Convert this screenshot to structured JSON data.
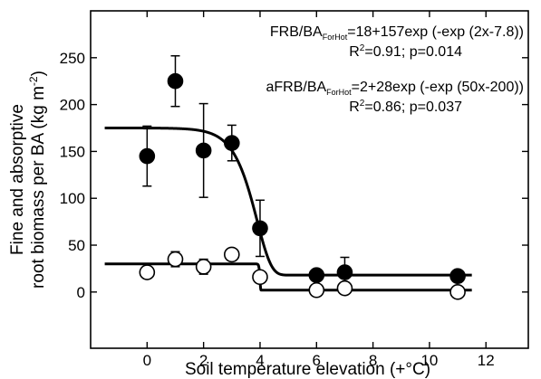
{
  "chart_data": {
    "type": "scatter",
    "xlabel": "Soil temperature elevation (+°C)",
    "ylabel_line1": "Fine and absorptive",
    "ylabel_line2": "root biomass per BA (kg m",
    "ylabel_sup": "-2",
    "ylabel_end": ")",
    "xlim": [
      -2,
      13.5
    ],
    "ylim": [
      -60,
      300
    ],
    "x_ticks": [
      "0",
      "2",
      "4",
      "6",
      "8",
      "10",
      "12"
    ],
    "y_ticks": [
      "0",
      "50",
      "100",
      "150",
      "200",
      "250"
    ],
    "grid": false,
    "series": [
      {
        "marker": "filled-circle",
        "points": [
          {
            "x": 0,
            "y": 145,
            "err": 32
          },
          {
            "x": 1,
            "y": 225,
            "err": 27
          },
          {
            "x": 2,
            "y": 151,
            "err": 50
          },
          {
            "x": 3,
            "y": 159,
            "err": 19
          },
          {
            "x": 4,
            "y": 68,
            "err": 30
          },
          {
            "x": 6,
            "y": 18,
            "err": 6
          },
          {
            "x": 7,
            "y": 21,
            "err": 16
          },
          {
            "x": 11,
            "y": 17,
            "err": 4
          }
        ],
        "fit": {
          "a": 18,
          "b": 157,
          "c": 2,
          "d": 7.8
        },
        "equation": {
          "lhs": "FRB/BA",
          "sub": "ForHot",
          "rhs": "=18+157exp (-exp (2x-7.8))",
          "stat_pre": "R",
          "stat_sup": "2",
          "stat_post": "=0.91; p=0.014"
        }
      },
      {
        "marker": "open-circle",
        "points": [
          {
            "x": 0,
            "y": 21,
            "err": 3
          },
          {
            "x": 1,
            "y": 35,
            "err": 8
          },
          {
            "x": 2,
            "y": 27,
            "err": 8
          },
          {
            "x": 3,
            "y": 40,
            "err": 3
          },
          {
            "x": 4,
            "y": 16,
            "err": 6
          },
          {
            "x": 6,
            "y": 2,
            "err": 2
          },
          {
            "x": 7,
            "y": 4,
            "err": 3
          },
          {
            "x": 11,
            "y": 0,
            "err": 2
          }
        ],
        "fit": {
          "a": 2,
          "b": 28,
          "c": 50,
          "d": 200
        },
        "equation": {
          "lhs": "aFRB/BA",
          "sub": "ForHot",
          "rhs": "=2+28exp (-exp (50x-200))",
          "stat_pre": "R",
          "stat_sup": "2",
          "stat_post": "=0.86; p=0.037"
        }
      }
    ]
  }
}
